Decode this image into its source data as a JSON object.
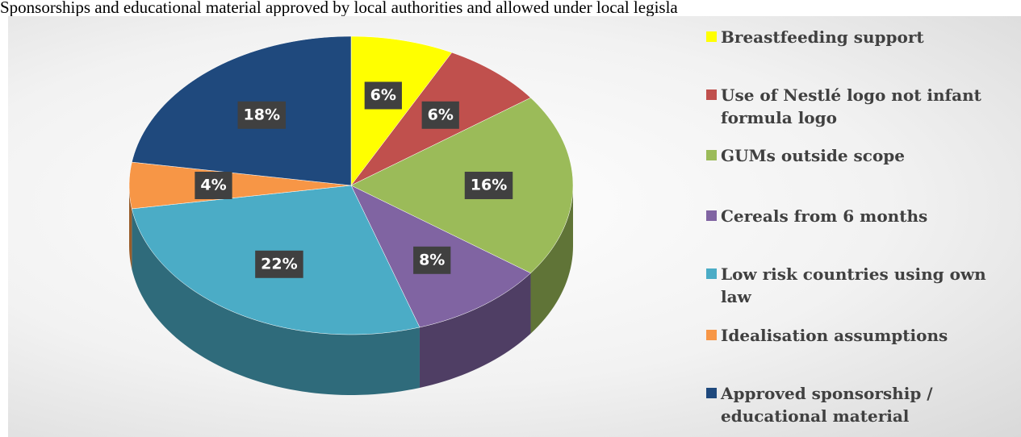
{
  "chart_data": {
    "type": "pie",
    "title": "Sponsorships and educational material approved by local authorities and allowed under local legisla",
    "categories": [
      "Breastfeeding support",
      "Use of Nestlé logo not infant formula logo",
      "GUMs outside scope",
      "Cereals from 6 months",
      "Low risk countries using own law",
      "Idealisation assumptions",
      "Approved sponsorship / educational material"
    ],
    "values": [
      6,
      6,
      16,
      8,
      22,
      4,
      18
    ],
    "value_labels": [
      "6%",
      "6%",
      "16%",
      "8%",
      "22%",
      "4%",
      "18%"
    ],
    "colors": [
      "#ffff00",
      "#c0504d",
      "#9bbb59",
      "#8064a2",
      "#4bacc6",
      "#f79646",
      "#1f497d"
    ],
    "legend": "right"
  }
}
